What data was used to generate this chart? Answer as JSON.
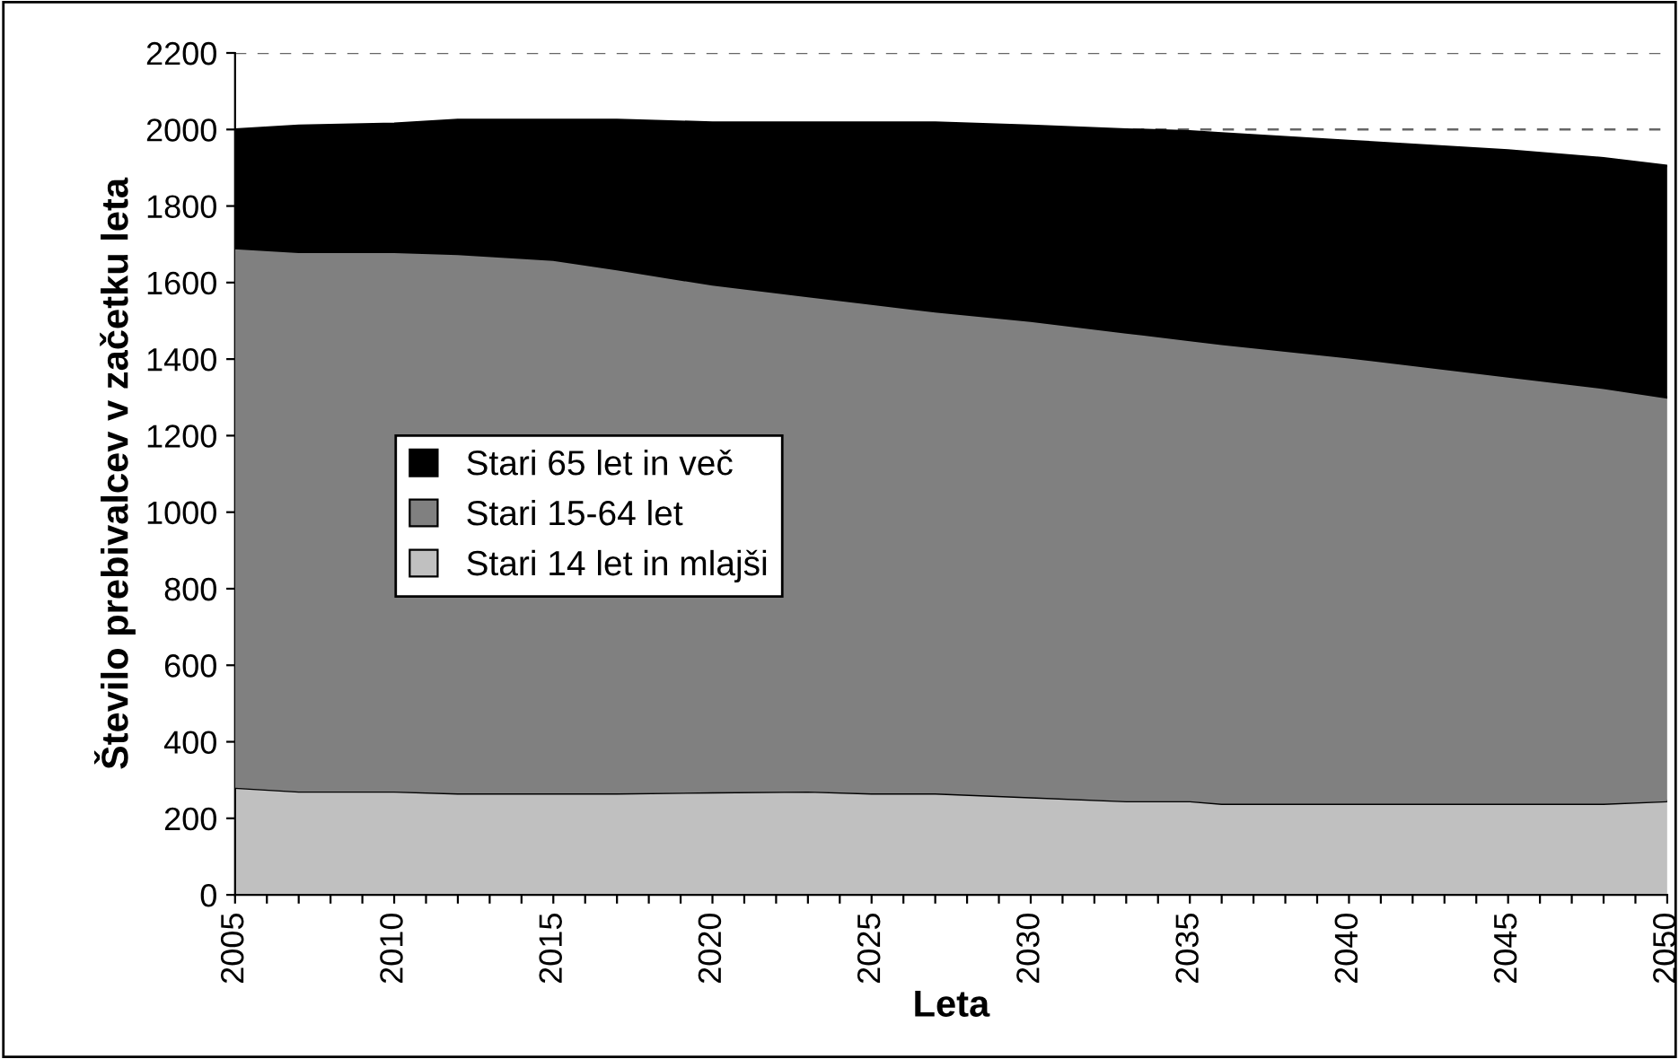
{
  "chart_data": {
    "type": "area",
    "stacked": true,
    "xlabel": "Leta",
    "ylabel": "Število prebivalcev v začetku leta",
    "x": [
      2005,
      2007,
      2010,
      2012,
      2015,
      2017,
      2020,
      2023,
      2025,
      2027,
      2030,
      2033,
      2035,
      2036,
      2040,
      2045,
      2048,
      2050
    ],
    "series": [
      {
        "name": "Stari 14 let in mlajši",
        "color": "#c0c0c0",
        "values": [
          280,
          270,
          270,
          265,
          265,
          265,
          268,
          270,
          265,
          265,
          255,
          245,
          245,
          238,
          238,
          238,
          238,
          245
        ]
      },
      {
        "name": "Stari 15-64 let",
        "color": "#808080",
        "values": [
          1410,
          1410,
          1410,
          1410,
          1395,
          1370,
          1327,
          1295,
          1280,
          1260,
          1245,
          1225,
          1205,
          1202,
          1167,
          1117,
          1087,
          1055
        ]
      },
      {
        "name": "Stari 65 let in več",
        "color": "#000000",
        "values": [
          310,
          330,
          335,
          350,
          365,
          390,
          423,
          453,
          473,
          493,
          510,
          530,
          545,
          550,
          565,
          590,
          600,
          605
        ]
      }
    ],
    "xlim": [
      2005,
      2050
    ],
    "ylim": [
      0,
      2200
    ],
    "xticks": [
      2005,
      {
        "value": 2006,
        "label": null
      },
      {
        "value": 2007,
        "label": null
      },
      {
        "value": 2008,
        "label": null
      },
      {
        "value": 2009,
        "label": null
      },
      2010,
      {
        "value": 2011,
        "label": null
      },
      {
        "value": 2012,
        "label": null
      },
      {
        "value": 2013,
        "label": null
      },
      {
        "value": 2014,
        "label": null
      },
      2015,
      {
        "value": 2016,
        "label": null
      },
      {
        "value": 2017,
        "label": null
      },
      {
        "value": 2018,
        "label": null
      },
      {
        "value": 2019,
        "label": null
      },
      2020,
      {
        "value": 2021,
        "label": null
      },
      {
        "value": 2022,
        "label": null
      },
      {
        "value": 2023,
        "label": null
      },
      {
        "value": 2024,
        "label": null
      },
      2025,
      {
        "value": 2026,
        "label": null
      },
      {
        "value": 2027,
        "label": null
      },
      {
        "value": 2028,
        "label": null
      },
      {
        "value": 2029,
        "label": null
      },
      2030,
      {
        "value": 2031,
        "label": null
      },
      {
        "value": 2032,
        "label": null
      },
      {
        "value": 2033,
        "label": null
      },
      {
        "value": 2034,
        "label": null
      },
      2035,
      {
        "value": 2036,
        "label": null
      },
      {
        "value": 2037,
        "label": null
      },
      {
        "value": 2038,
        "label": null
      },
      {
        "value": 2039,
        "label": null
      },
      2040,
      {
        "value": 2041,
        "label": null
      },
      {
        "value": 2042,
        "label": null
      },
      {
        "value": 2043,
        "label": null
      },
      {
        "value": 2044,
        "label": null
      },
      2045,
      {
        "value": 2046,
        "label": null
      },
      {
        "value": 2047,
        "label": null
      },
      {
        "value": 2048,
        "label": null
      },
      {
        "value": 2049,
        "label": null
      },
      2050
    ],
    "yticks": [
      0,
      200,
      400,
      600,
      800,
      1000,
      1200,
      1400,
      1600,
      1800,
      2000,
      2200
    ],
    "grid": "y",
    "legend": "left"
  }
}
